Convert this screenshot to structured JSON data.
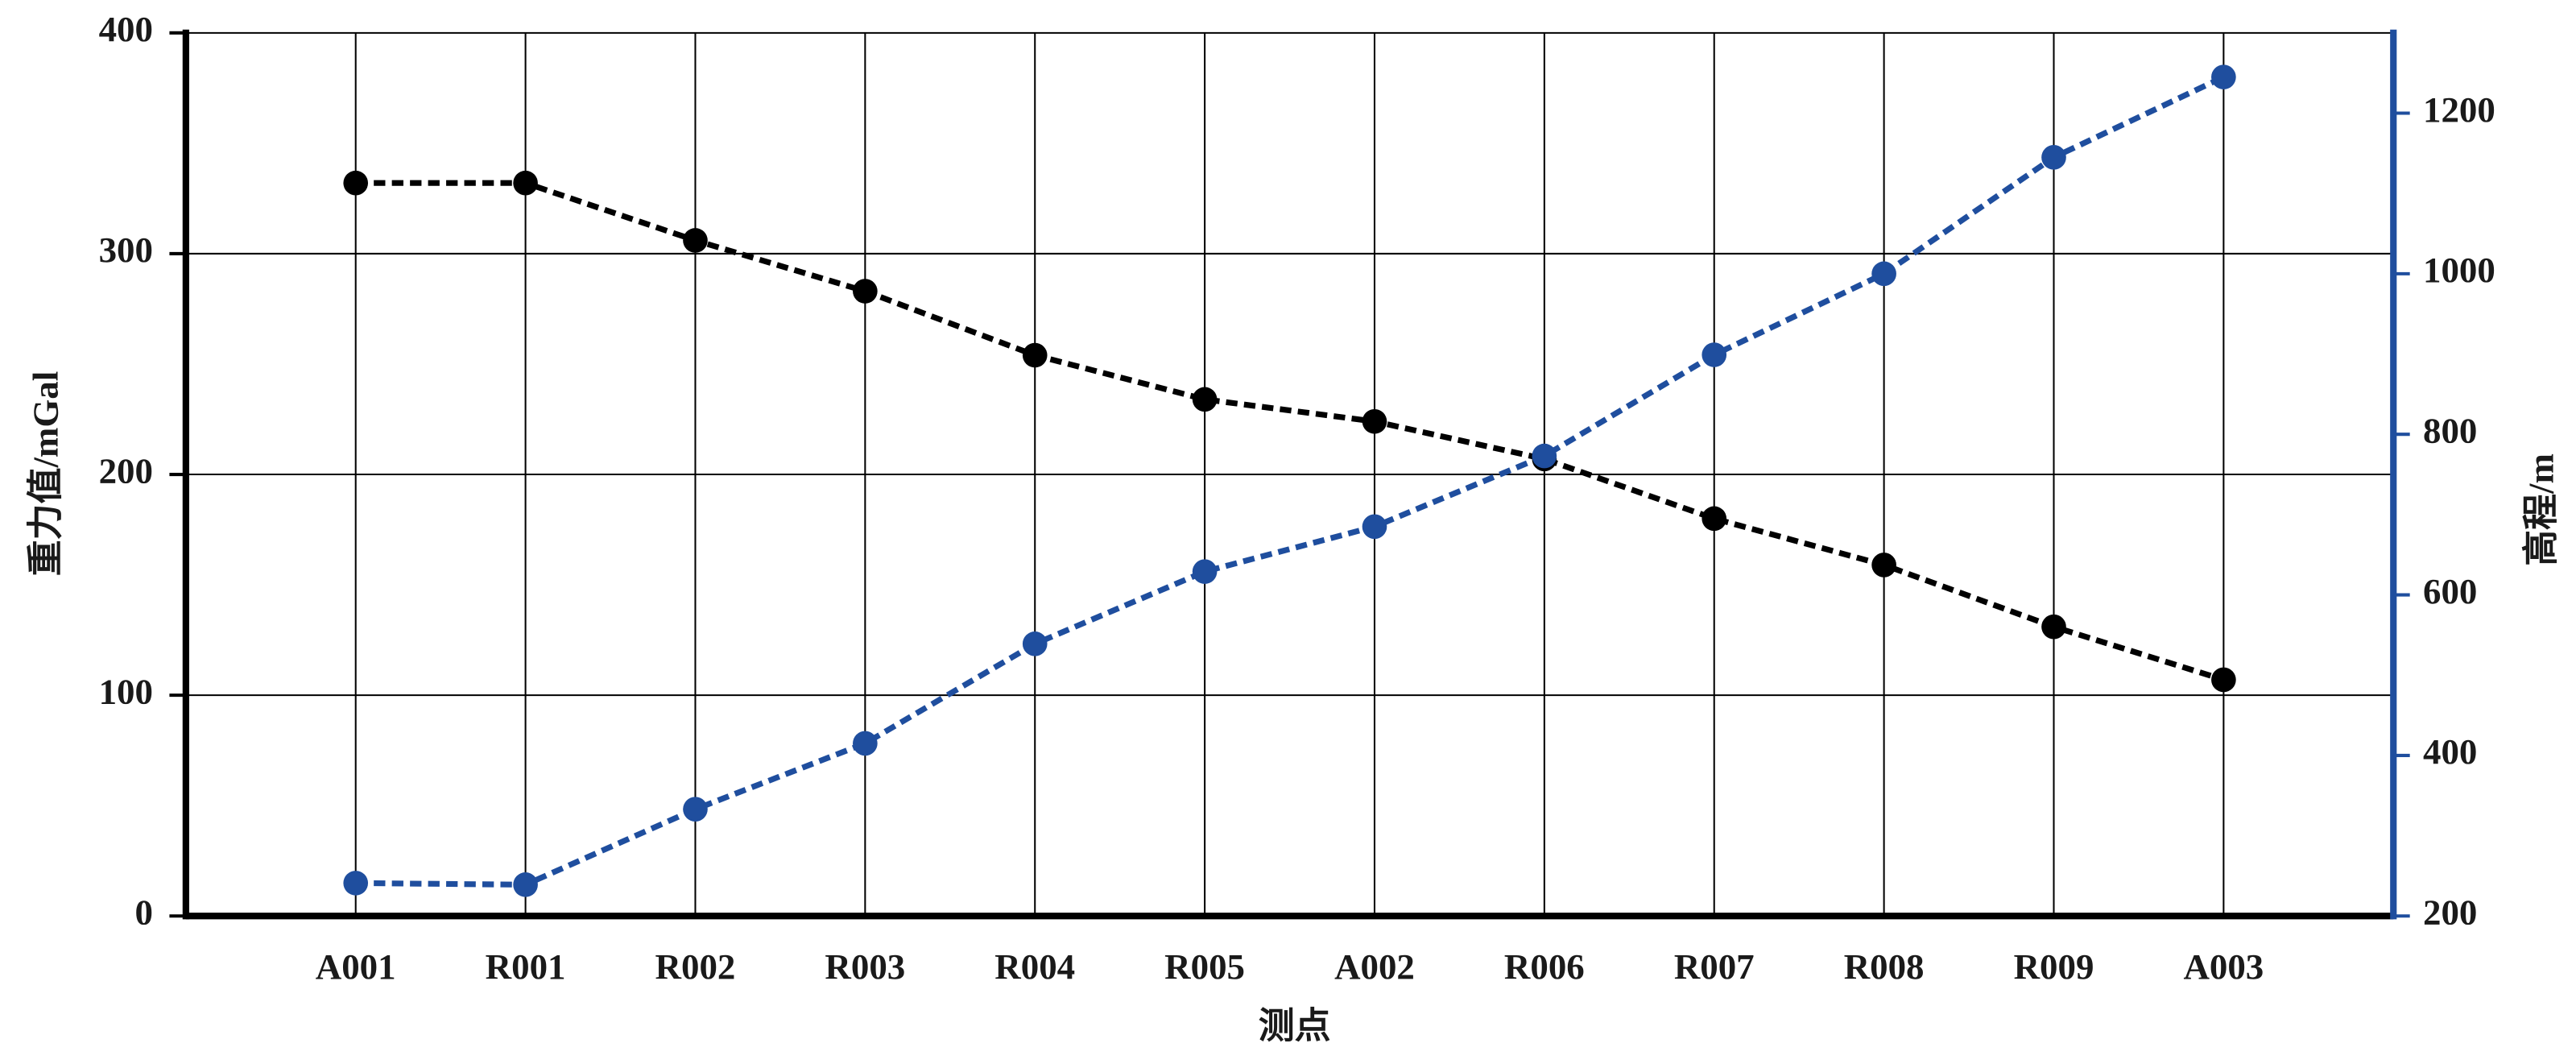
{
  "chart_data": {
    "type": "line",
    "x_label": "测点",
    "y_label": "重力值/mGal",
    "y2_label": "高程/m",
    "categories": [
      "A001",
      "R001",
      "R002",
      "R003",
      "R004",
      "R005",
      "A002",
      "R006",
      "R007",
      "R008",
      "R009",
      "A003"
    ],
    "series": [
      {
        "name": "重力值",
        "color": "#000000",
        "values": [
          332,
          332,
          306,
          283,
          254,
          234,
          224,
          207,
          180,
          159,
          131,
          107
        ]
      },
      {
        "name": "高程",
        "color": "#1f4e9e",
        "axis": "y2",
        "values": [
          241,
          239,
          333,
          415,
          539,
          629,
          685,
          773,
          899,
          1000,
          1145,
          1245
        ]
      }
    ],
    "ylim": [
      0,
      400
    ],
    "yticks": [
      0,
      100,
      200,
      300,
      400
    ],
    "y2lim": [
      200,
      1300
    ],
    "y2ticks": [
      200,
      400,
      600,
      800,
      1000,
      1200
    ],
    "grid": true
  }
}
